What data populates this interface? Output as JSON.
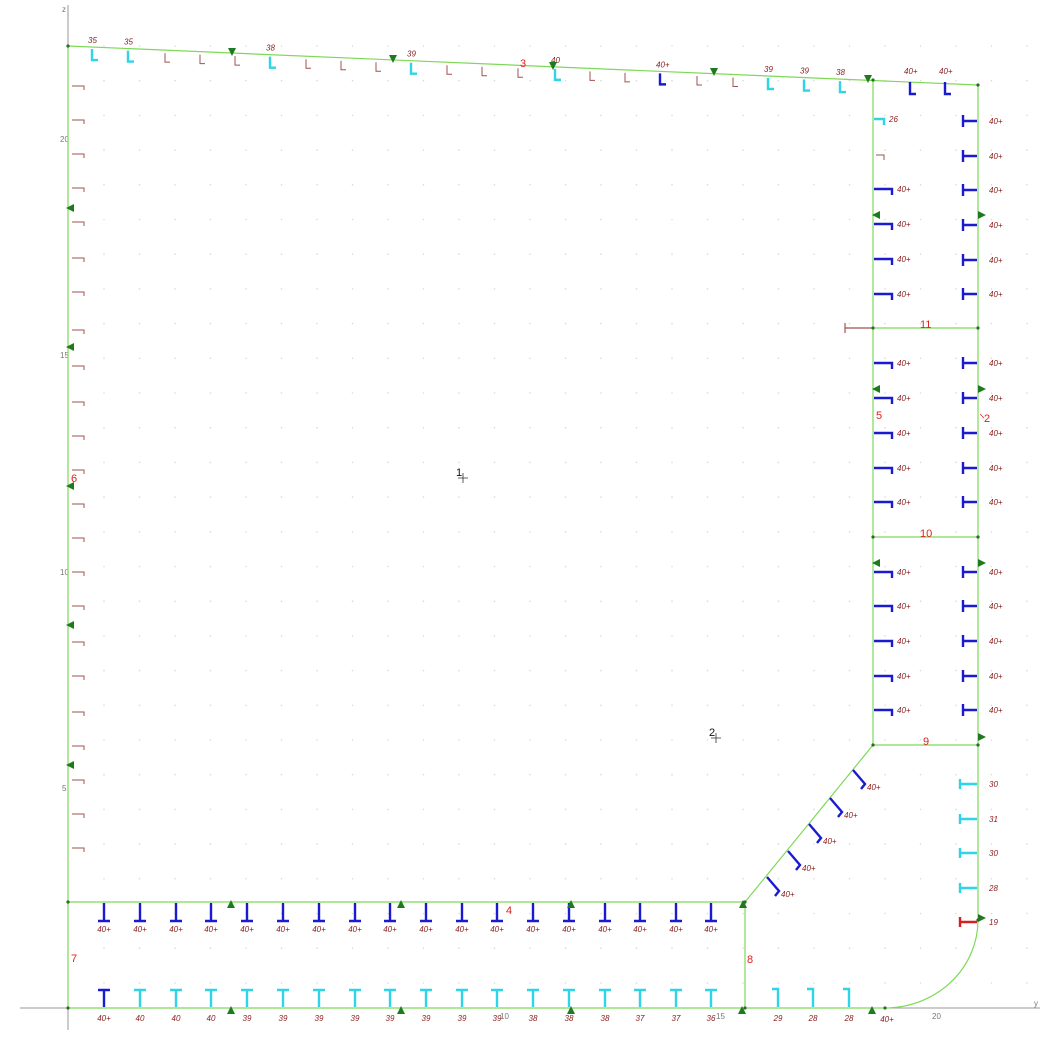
{
  "colors": {
    "background": "#ffffff",
    "outline": "#7ed957",
    "dot_grid": "#d9d9d9",
    "axis": "#9a9a9a",
    "stiffener_small": "#a0524f",
    "stiffener_cyan": "#2fd4e6",
    "stiffener_blue": "#1a1ad0",
    "stiffener_red": "#d81f1f",
    "triangle_marker": "#1f7a1f",
    "member_label": "#e0201a",
    "stiffener_label": "#8b1a1a",
    "node_label": "#111111"
  },
  "icons": {
    "member_direction": "chevron-arrow-icon",
    "support_marker": "green-triangle-icon",
    "node_marker": "crosshair-icon"
  },
  "axes": {
    "vertical_label": "z",
    "horizontal_label": "y",
    "vertical_ticks": [
      "20",
      "15",
      "10",
      "5"
    ],
    "horizontal_ticks": [
      "10",
      "15",
      "20"
    ]
  },
  "nodes": [
    "1",
    "2"
  ],
  "members": [
    {
      "id": "2"
    },
    {
      "id": "3"
    },
    {
      "id": "4"
    },
    {
      "id": "5"
    },
    {
      "id": "6"
    },
    {
      "id": "7"
    },
    {
      "id": "8"
    },
    {
      "id": "9"
    },
    {
      "id": "10"
    },
    {
      "id": "11"
    }
  ],
  "stiffener_labels": {
    "top_edge": [
      "35",
      "35",
      "38",
      "39",
      "40",
      "40+",
      "39",
      "39",
      "38",
      "40+",
      "40+"
    ],
    "inner_web_left": [
      "26",
      "40+",
      "40+",
      "40+",
      "40+",
      "40+",
      "40+",
      "40+",
      "40+",
      "40+",
      "40+",
      "40+",
      "40+",
      "40+",
      "40+"
    ],
    "outer_web_right": [
      "40+",
      "40+",
      "40+",
      "40+",
      "40+",
      "40+",
      "40+",
      "40+",
      "40+",
      "40+",
      "40+",
      "40+",
      "40+",
      "40+",
      "40+",
      "40+",
      "40+"
    ],
    "right_lower": [
      "30",
      "31",
      "30",
      "28",
      "19"
    ],
    "diagonal": [
      "40+",
      "40+",
      "40+",
      "40+",
      "40+"
    ],
    "upper_bottom_row": [
      "40+",
      "40+",
      "40+",
      "40+",
      "40+",
      "40+",
      "40+",
      "40+",
      "40+",
      "40+",
      "40+",
      "40+",
      "40+",
      "40+",
      "40+",
      "40+",
      "40+",
      "40+"
    ],
    "lower_bottom_row": [
      "40+",
      "40",
      "40",
      "40",
      "39",
      "39",
      "39",
      "39",
      "39",
      "39",
      "39",
      "39",
      "38",
      "38",
      "38",
      "37",
      "37",
      "36",
      "29",
      "28",
      "28",
      "40+"
    ]
  }
}
